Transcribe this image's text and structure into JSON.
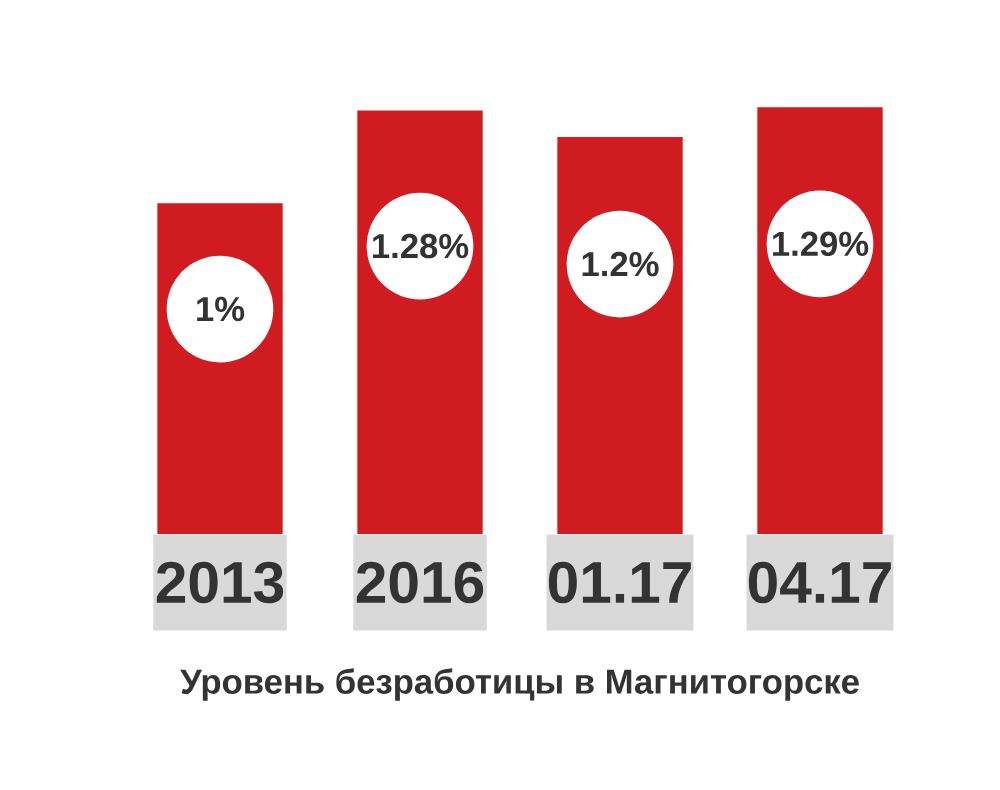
{
  "chart_data": {
    "type": "bar",
    "title": "Уровень безработицы в Магнитогорске",
    "categories": [
      "2013",
      "2016",
      "01.17",
      "04.17"
    ],
    "values": [
      1,
      1.28,
      1.2,
      1.29
    ],
    "value_labels": [
      "1%",
      "1.28%",
      "1.2%",
      "1.29%"
    ],
    "color": "#d01c20"
  }
}
